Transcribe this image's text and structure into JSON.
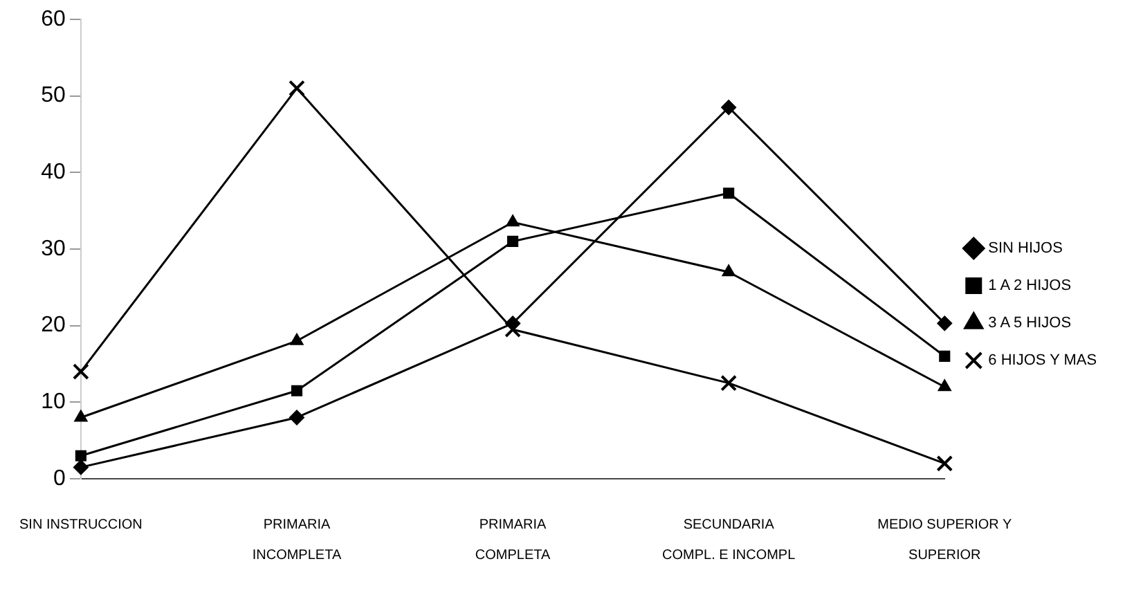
{
  "chart_data": {
    "type": "line",
    "categories": [
      "SIN INSTRUCCION",
      "PRIMARIA INCOMPLETA",
      "PRIMARIA COMPLETA",
      "SECUNDARIA COMPL. E INCOMPL",
      "MEDIO SUPERIOR Y SUPERIOR"
    ],
    "series": [
      {
        "name": "SIN HIJOS",
        "color": "#000000",
        "marker": "diamond",
        "values": [
          1.5,
          8,
          20.3,
          48.5,
          20.3
        ]
      },
      {
        "name": "1 A 2 HIJOS",
        "color": "#000000",
        "marker": "square",
        "values": [
          3,
          11.5,
          31,
          37.3,
          16
        ]
      },
      {
        "name": "3 A 5 HIJOS",
        "color": "#000000",
        "marker": "triangle",
        "values": [
          8,
          18,
          33.5,
          27,
          12
        ]
      },
      {
        "name": "6 HIJOS Y MAS",
        "color": "#000000",
        "marker": "cross",
        "values": [
          14,
          51,
          19.5,
          12.5,
          2
        ]
      }
    ],
    "ylim": [
      0,
      60
    ],
    "yticks": [
      0,
      10,
      20,
      30,
      40,
      50,
      60
    ],
    "grid": false,
    "legend": "right"
  }
}
